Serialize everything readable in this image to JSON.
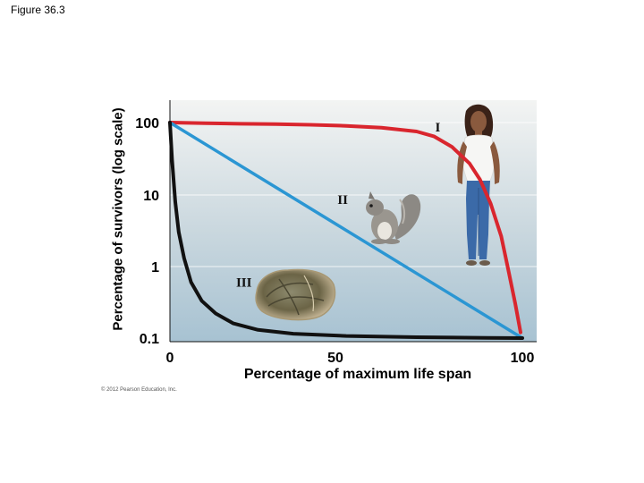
{
  "figure_label": "Figure 36.3",
  "copyright": "© 2012 Pearson Education, Inc.",
  "chart_data": {
    "type": "line",
    "ylabel": "Percentage of survivors (log scale)",
    "xlabel": "Percentage of maximum life span",
    "yscale": "log",
    "xlim": [
      0,
      100
    ],
    "ylim": [
      0.1,
      100
    ],
    "x_ticks": [
      0,
      50,
      100
    ],
    "y_ticks": [
      0.1,
      1,
      10,
      100
    ],
    "x_tick_labels": [
      "0",
      "50",
      "100"
    ],
    "y_tick_labels": [
      "0.1",
      "1",
      "10",
      "100"
    ],
    "grid": false,
    "series": [
      {
        "label": "I",
        "color": "#d9262e",
        "x": [
          0,
          10,
          20,
          30,
          40,
          50,
          60,
          70,
          75,
          80,
          85,
          88,
          91,
          94,
          96,
          98,
          99.5
        ],
        "y": [
          100,
          98,
          96,
          95,
          93,
          90,
          85,
          75,
          64,
          46,
          27,
          16,
          7.5,
          2.6,
          0.9,
          0.3,
          0.12
        ]
      },
      {
        "label": "II",
        "color": "#2b96d3",
        "x": [
          0,
          100
        ],
        "y": [
          100,
          0.1
        ]
      },
      {
        "label": "III",
        "color": "#111111",
        "x": [
          0,
          0.6,
          1.5,
          2.5,
          4,
          6,
          9,
          13,
          18,
          25,
          35,
          50,
          70,
          90,
          100
        ],
        "y": [
          100,
          30,
          8,
          3,
          1.3,
          0.6,
          0.33,
          0.22,
          0.16,
          0.13,
          0.115,
          0.107,
          0.103,
          0.101,
          0.1
        ]
      }
    ],
    "annotations": [
      {
        "text": "I",
        "x": 76,
        "y": 75
      },
      {
        "text": "II",
        "x": 49,
        "y": 7.4
      },
      {
        "text": "III",
        "x": 21,
        "y": 0.52
      }
    ],
    "images": [
      "human-figure",
      "squirrel",
      "oyster"
    ]
  }
}
